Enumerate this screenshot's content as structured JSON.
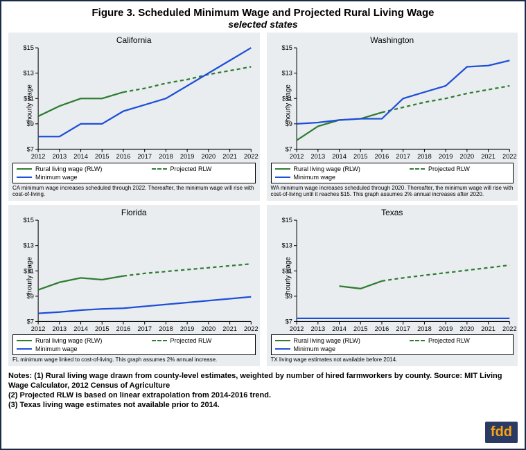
{
  "title": "Figure 3. Scheduled Minimum Wage and Projected Rural Living Wage",
  "subtitle": "selected states",
  "logo": "fdd",
  "axis": {
    "ylabel": "hourly wage",
    "ylim": [
      7,
      15
    ],
    "yticks": [
      7,
      9,
      11,
      13,
      15
    ],
    "ytick_labels": [
      "$7",
      "$9",
      "$11",
      "$13",
      "$15"
    ],
    "xlim": [
      2012,
      2022
    ],
    "xticks": [
      2012,
      2013,
      2014,
      2015,
      2016,
      2017,
      2018,
      2019,
      2020,
      2021,
      2022
    ],
    "background_color": "#eaedf0",
    "grid": false
  },
  "colors": {
    "rlw": "#2e7d32",
    "proj": "#2e7d32",
    "minwage": "#1e4fd8",
    "panel_bg": "#eaedf0",
    "axis": "#000000",
    "text": "#000000"
  },
  "legend_labels": {
    "rlw": "Rural living wage (RLW)",
    "proj": "Projected RLW",
    "minwage": "Minimum wage"
  },
  "panels": [
    {
      "name": "California",
      "caption": "CA minimum wage increases scheduled through 2022. Thereafter, the minimum wage will rise with cost-of-living.",
      "rlw": {
        "x": [
          2012,
          2013,
          2014,
          2015,
          2016
        ],
        "y": [
          9.6,
          10.4,
          11.0,
          11.0,
          11.5
        ]
      },
      "proj": {
        "x": [
          2016,
          2017,
          2018,
          2019,
          2020,
          2021,
          2022
        ],
        "y": [
          11.5,
          11.8,
          12.2,
          12.5,
          12.9,
          13.2,
          13.5
        ]
      },
      "minwage": {
        "x": [
          2012,
          2013,
          2014,
          2015,
          2016,
          2017,
          2018,
          2019,
          2020,
          2021,
          2022
        ],
        "y": [
          8.0,
          8.0,
          9.0,
          9.0,
          10.0,
          10.5,
          11.0,
          12.0,
          13.0,
          14.0,
          15.0
        ]
      }
    },
    {
      "name": "Washington",
      "caption": "WA minimum wage increases scheduled through 2020. Thereafter, the minimum wage will rise with cost-of-living until it reaches $15. This graph assumes 2% annual increases after 2020.",
      "rlw": {
        "x": [
          2012,
          2013,
          2014,
          2015,
          2016
        ],
        "y": [
          7.7,
          8.8,
          9.3,
          9.4,
          9.9
        ]
      },
      "proj": {
        "x": [
          2016,
          2017,
          2018,
          2019,
          2020,
          2021,
          2022
        ],
        "y": [
          9.9,
          10.3,
          10.7,
          11.0,
          11.4,
          11.7,
          12.0
        ]
      },
      "minwage": {
        "x": [
          2012,
          2013,
          2014,
          2015,
          2016,
          2017,
          2018,
          2019,
          2020,
          2021,
          2022
        ],
        "y": [
          9.0,
          9.1,
          9.3,
          9.4,
          9.4,
          11.0,
          11.5,
          12.0,
          13.5,
          13.6,
          14.0
        ]
      }
    },
    {
      "name": "Florida",
      "caption": "FL minimum wage linked to cost-of-living. This graph assumes 2% annual increase.",
      "rlw": {
        "x": [
          2012,
          2013,
          2014,
          2015,
          2016
        ],
        "y": [
          9.5,
          10.1,
          10.45,
          10.3,
          10.6
        ]
      },
      "proj": {
        "x": [
          2016,
          2017,
          2018,
          2019,
          2020,
          2021,
          2022
        ],
        "y": [
          10.6,
          10.8,
          10.95,
          11.1,
          11.25,
          11.4,
          11.55
        ]
      },
      "minwage": {
        "x": [
          2012,
          2013,
          2014,
          2015,
          2016,
          2017,
          2018,
          2019,
          2020,
          2021,
          2022
        ],
        "y": [
          7.65,
          7.75,
          7.9,
          8.0,
          8.05,
          8.2,
          8.35,
          8.5,
          8.65,
          8.8,
          8.95
        ]
      }
    },
    {
      "name": "Texas",
      "caption": "TX living wage estimates not available before 2014.",
      "rlw": {
        "x": [
          2014,
          2015,
          2016
        ],
        "y": [
          9.8,
          9.6,
          10.2
        ]
      },
      "proj": {
        "x": [
          2016,
          2017,
          2018,
          2019,
          2020,
          2021,
          2022
        ],
        "y": [
          10.2,
          10.45,
          10.65,
          10.85,
          11.05,
          11.25,
          11.45
        ]
      },
      "minwage": {
        "x": [
          2012,
          2013,
          2014,
          2015,
          2016,
          2017,
          2018,
          2019,
          2020,
          2021,
          2022
        ],
        "y": [
          7.25,
          7.25,
          7.25,
          7.25,
          7.25,
          7.25,
          7.25,
          7.25,
          7.25,
          7.25,
          7.25
        ]
      }
    }
  ],
  "notes": [
    "Notes: (1) Rural living wage drawn from county-level estimates, weighted by number of hired farmworkers by county. Source: MIT Living Wage Calculator, 2012 Census of Agriculture",
    "(2) Projected RLW is based on linear extrapolation from 2014-2016 trend.",
    "(3) Texas living wage estimates not available prior to 2014."
  ]
}
